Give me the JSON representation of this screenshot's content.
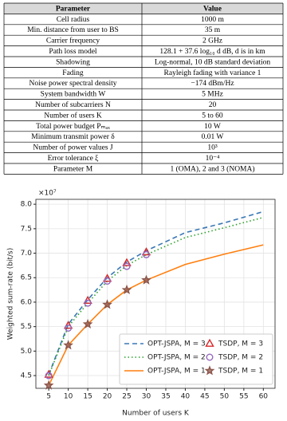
{
  "table": {
    "header": [
      "Parameter",
      "Value"
    ],
    "rows": [
      [
        "Cell radius",
        "1000 m"
      ],
      [
        "Min. distance from user to BS",
        "35 m"
      ],
      [
        "Carrier frequency",
        "2 GHz"
      ],
      [
        "Path loss model",
        "128.1 + 37.6 log₁₀ d dB, d is in km"
      ],
      [
        "Shadowing",
        "Log-normal, 10 dB standard deviation"
      ],
      [
        "Fading",
        "Rayleigh fading with variance 1"
      ],
      [
        "Noise power spectral density",
        "−174 dBm/Hz"
      ],
      [
        "System bandwidth W",
        "5 MHz"
      ],
      [
        "Number of subcarriers N",
        "20"
      ],
      [
        "Number of users K",
        "5 to 60"
      ],
      [
        "Total power budget Pₘₐₓ",
        "10 W"
      ],
      [
        "Minimum transmit power δ",
        "0.01 W"
      ],
      [
        "Number of power values J",
        "10³"
      ],
      [
        "Error tolerance ξ",
        "10⁻⁴"
      ],
      [
        "Parameter M",
        "1 (OMA), 2 and 3 (NOMA)"
      ]
    ]
  },
  "chart_data": {
    "type": "line",
    "x_label": "Number of users K",
    "y_label": "Weighted sum-rate (bit/s)",
    "y_scale_label": "×10⁷",
    "x": [
      5,
      10,
      15,
      20,
      25,
      30,
      40,
      50,
      60
    ],
    "xlim": [
      1.7,
      63
    ],
    "xticks": [
      5,
      10,
      15,
      20,
      25,
      30,
      35,
      40,
      45,
      50,
      55,
      60
    ],
    "ylim": [
      4.24,
      8.1
    ],
    "yticks": [
      4.5,
      {
        "value": 5,
        "label": "5.0"
      },
      5.5,
      {
        "value": 6,
        "label": "6.0"
      },
      6.5,
      {
        "value": 7,
        "label": "7.0"
      },
      7.5,
      {
        "value": 8,
        "label": "8.0"
      }
    ],
    "grid": true,
    "series": [
      {
        "name": "OPT-JSPA, M = 3",
        "color": "#3a78b5",
        "style": "line",
        "dash": "6,4",
        "values": [
          4.52,
          5.55,
          6.05,
          6.5,
          6.82,
          7.05,
          7.42,
          7.62,
          7.85
        ]
      },
      {
        "name": "OPT-JSPA, M = 2",
        "color": "#2ca02c",
        "style": "line",
        "dash": "1.5,3",
        "values": [
          4.5,
          5.5,
          5.98,
          6.43,
          6.75,
          6.97,
          7.32,
          7.52,
          7.73
        ]
      },
      {
        "name": "OPT-JSPA, M = 1",
        "color": "#ff7f0e",
        "style": "line",
        "dash": "none",
        "values": [
          4.3,
          5.12,
          5.55,
          5.95,
          6.25,
          6.45,
          6.77,
          6.98,
          7.17
        ]
      },
      {
        "name": "TSDP, M = 3",
        "color": "#d62728",
        "style": "marker",
        "marker": "triangle",
        "values": [
          4.52,
          5.52,
          6.03,
          6.48,
          6.8,
          7.02,
          null,
          null,
          null
        ]
      },
      {
        "name": "TSDP, M = 2",
        "color": "#9467bd",
        "style": "marker",
        "marker": "circle",
        "values": [
          4.5,
          5.47,
          5.98,
          6.43,
          6.73,
          6.97,
          null,
          null,
          null
        ]
      },
      {
        "name": "TSDP, M = 1",
        "color": "#8c564b",
        "style": "marker",
        "marker": "star",
        "values": [
          4.3,
          5.12,
          5.55,
          5.95,
          6.25,
          6.45,
          null,
          null,
          null
        ]
      }
    ]
  }
}
